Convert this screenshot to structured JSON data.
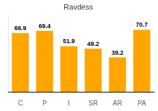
{
  "chart_data": {
    "type": "bar",
    "title": "Ravdess",
    "categories": [
      "C",
      "P",
      "I",
      "SR",
      "AR",
      "PA"
    ],
    "values": [
      66.9,
      69.4,
      51.9,
      49.2,
      39.2,
      70.7
    ],
    "color": "#FFA500",
    "ylim": [
      0,
      88
    ],
    "grid": false,
    "data_labels": true,
    "tick_labels": "x"
  }
}
